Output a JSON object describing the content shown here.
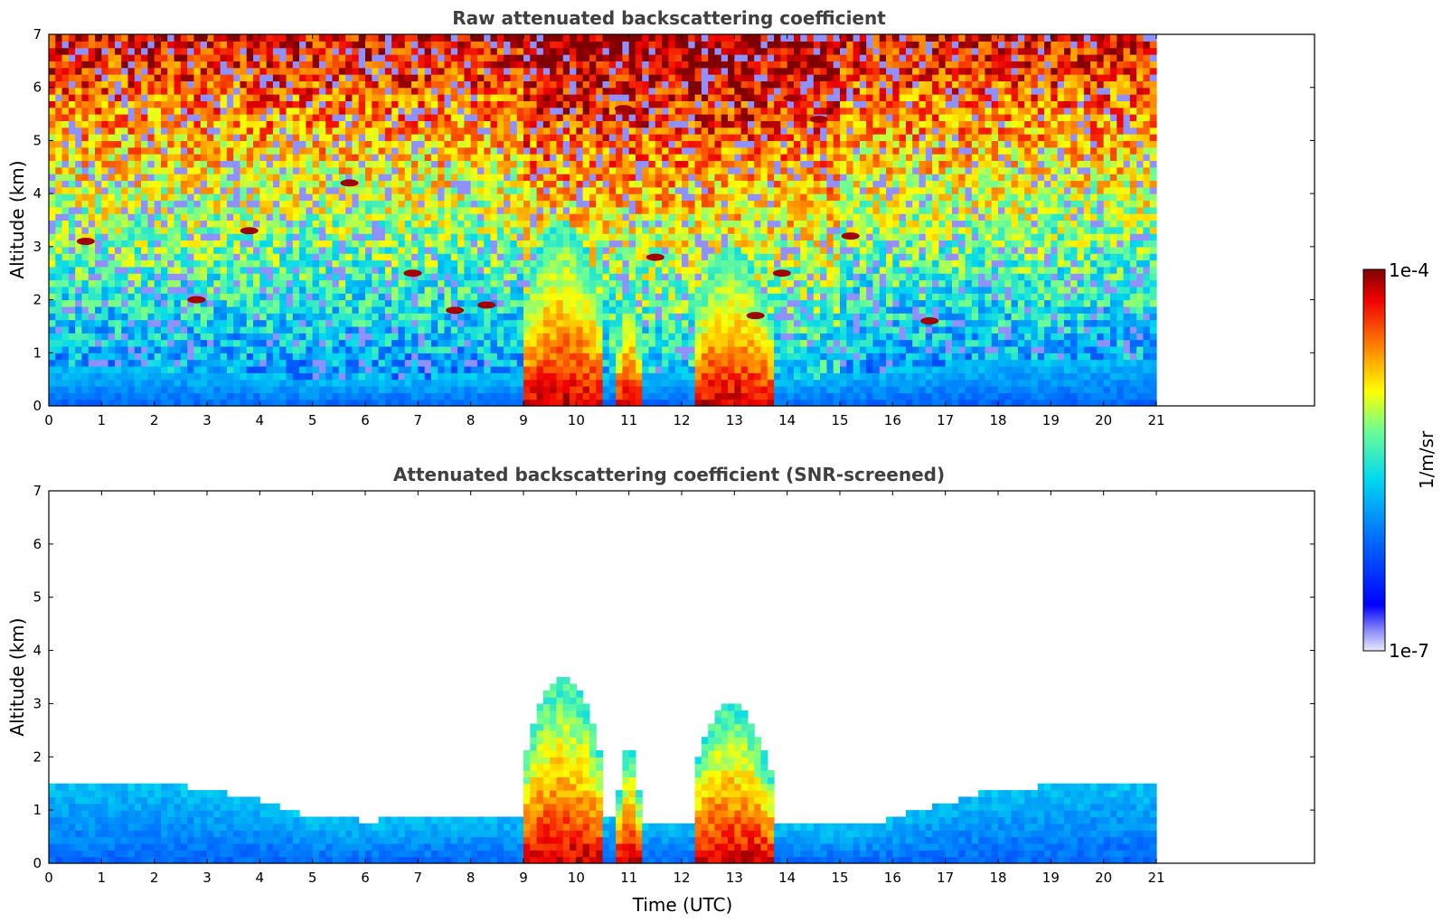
{
  "chart_data": [
    {
      "type": "heatmap",
      "title": "Raw attenuated backscattering coefficient",
      "xlabel": "",
      "ylabel": "Altitude (km)",
      "xlim": [
        0,
        24
      ],
      "ylim": [
        0,
        7
      ],
      "data_x_range": [
        0,
        21
      ],
      "x_ticks": [
        "0",
        "1",
        "2",
        "3",
        "4",
        "5",
        "6",
        "7",
        "8",
        "9",
        "10",
        "11",
        "12",
        "13",
        "14",
        "15",
        "16",
        "17",
        "18",
        "19",
        "20",
        "21"
      ],
      "y_ticks": [
        "0",
        "1",
        "2",
        "3",
        "4",
        "5",
        "6",
        "7"
      ],
      "screened": false,
      "features": {
        "boundary_layer_top_km": [
          [
            0,
            0.8
          ],
          [
            2,
            0.7
          ],
          [
            4,
            0.6
          ],
          [
            5,
            0.5
          ],
          [
            6,
            0.5
          ],
          [
            8,
            0.6
          ],
          [
            9,
            0.6
          ],
          [
            11,
            0.6
          ],
          [
            12,
            0.6
          ],
          [
            14,
            0.5
          ],
          [
            16,
            0.7
          ],
          [
            18,
            0.9
          ],
          [
            20,
            0.9
          ],
          [
            21,
            0.9
          ]
        ],
        "convective_plumes": [
          {
            "t0": 9.0,
            "t1": 10.5,
            "top_km": 3.5
          },
          {
            "t0": 10.8,
            "t1": 11.2,
            "top_km": 2.2
          },
          {
            "t0": 12.2,
            "t1": 13.7,
            "top_km": 3.0
          }
        ],
        "cloud_patches": [
          {
            "t": 0.7,
            "alt_km": 3.1
          },
          {
            "t": 2.8,
            "alt_km": 2.0
          },
          {
            "t": 3.8,
            "alt_km": 3.3
          },
          {
            "t": 5.7,
            "alt_km": 4.2
          },
          {
            "t": 6.9,
            "alt_km": 2.5
          },
          {
            "t": 7.7,
            "alt_km": 1.8
          },
          {
            "t": 8.3,
            "alt_km": 1.9
          },
          {
            "t": 10.9,
            "alt_km": 5.6
          },
          {
            "t": 11.5,
            "alt_km": 2.8
          },
          {
            "t": 13.4,
            "alt_km": 1.7
          },
          {
            "t": 13.9,
            "alt_km": 2.5
          },
          {
            "t": 14.1,
            "alt_km": 5.8
          },
          {
            "t": 14.6,
            "alt_km": 5.4
          },
          {
            "t": 15.2,
            "alt_km": 3.2
          },
          {
            "t": 16.7,
            "alt_km": 1.6
          }
        ]
      }
    },
    {
      "type": "heatmap",
      "title": "Attenuated backscattering coefficient (SNR-screened)",
      "xlabel": "Time (UTC)",
      "ylabel": "Altitude (km)",
      "xlim": [
        0,
        24
      ],
      "ylim": [
        0,
        7
      ],
      "data_x_range": [
        0,
        21
      ],
      "x_ticks": [
        "0",
        "1",
        "2",
        "3",
        "4",
        "5",
        "6",
        "7",
        "8",
        "9",
        "10",
        "11",
        "12",
        "13",
        "14",
        "15",
        "16",
        "17",
        "18",
        "19",
        "20",
        "21"
      ],
      "y_ticks": [
        "0",
        "1",
        "2",
        "3",
        "4",
        "5",
        "6",
        "7"
      ],
      "screened": true,
      "features": {
        "aerosol_layer_top_km": [
          [
            0,
            1.5
          ],
          [
            2,
            1.5
          ],
          [
            3,
            1.4
          ],
          [
            4,
            1.2
          ],
          [
            4.8,
            0.9
          ],
          [
            6,
            0.8
          ],
          [
            8,
            0.9
          ],
          [
            9,
            0.9
          ],
          [
            11,
            0.8
          ],
          [
            12,
            0.8
          ],
          [
            14,
            0.7
          ],
          [
            15.5,
            0.7
          ],
          [
            16.5,
            1.0
          ],
          [
            18,
            1.4
          ],
          [
            20,
            1.5
          ],
          [
            21,
            1.5
          ]
        ],
        "convective_plumes": [
          {
            "t0": 9.0,
            "t1": 10.5,
            "top_km": 3.5
          },
          {
            "t0": 10.8,
            "t1": 11.2,
            "top_km": 2.2
          },
          {
            "t0": 12.2,
            "t1": 13.7,
            "top_km": 3.0
          }
        ]
      }
    }
  ],
  "colorbar": {
    "label": "1/m/sr",
    "max_label": "1e-4",
    "min_label": "1e-7",
    "colors": [
      "#e4e4f4",
      "#0000ff",
      "#0080ff",
      "#00e0f0",
      "#80ff80",
      "#ffff00",
      "#ff8000",
      "#ff0000",
      "#800000"
    ]
  }
}
